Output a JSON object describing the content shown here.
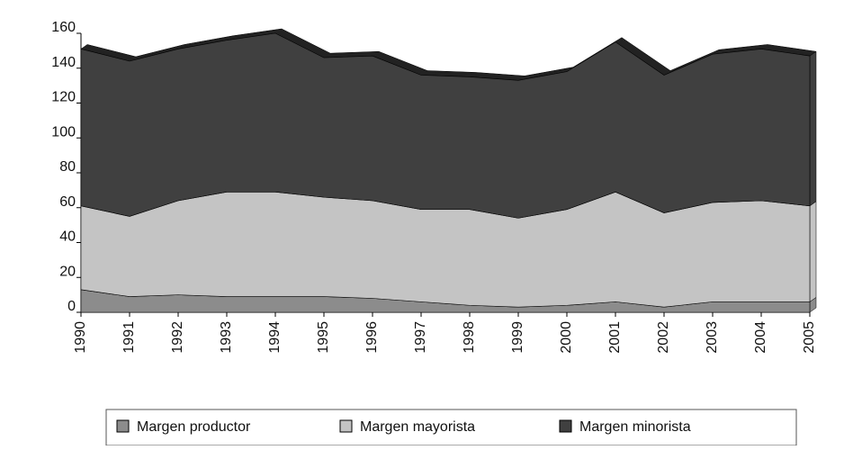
{
  "chart_data": {
    "type": "area",
    "categories": [
      "1990",
      "1991",
      "1992",
      "1993",
      "1994",
      "1995",
      "1996",
      "1997",
      "1998",
      "1999",
      "2000",
      "2001",
      "2002",
      "2003",
      "2004",
      "2005"
    ],
    "series": [
      {
        "name": "Margen productor",
        "color": "#8c8c8c",
        "values": [
          13,
          9,
          10,
          9,
          9,
          9,
          8,
          6,
          4,
          3,
          4,
          6,
          3,
          6,
          6,
          6
        ]
      },
      {
        "name": "Margen mayorista",
        "color": "#c4c4c4",
        "values": [
          48,
          46,
          54,
          60,
          60,
          57,
          56,
          53,
          55,
          51,
          55,
          63,
          54,
          57,
          58,
          55
        ]
      },
      {
        "name": "Margen minorista",
        "color": "#404040",
        "values": [
          90,
          89,
          87,
          87,
          91,
          80,
          83,
          77,
          76,
          79,
          79,
          86,
          79,
          85,
          87,
          86
        ]
      }
    ],
    "stacked": true,
    "ylim": [
      0,
      160
    ],
    "yticks": [
      0,
      20,
      40,
      60,
      80,
      100,
      120,
      140,
      160
    ]
  }
}
